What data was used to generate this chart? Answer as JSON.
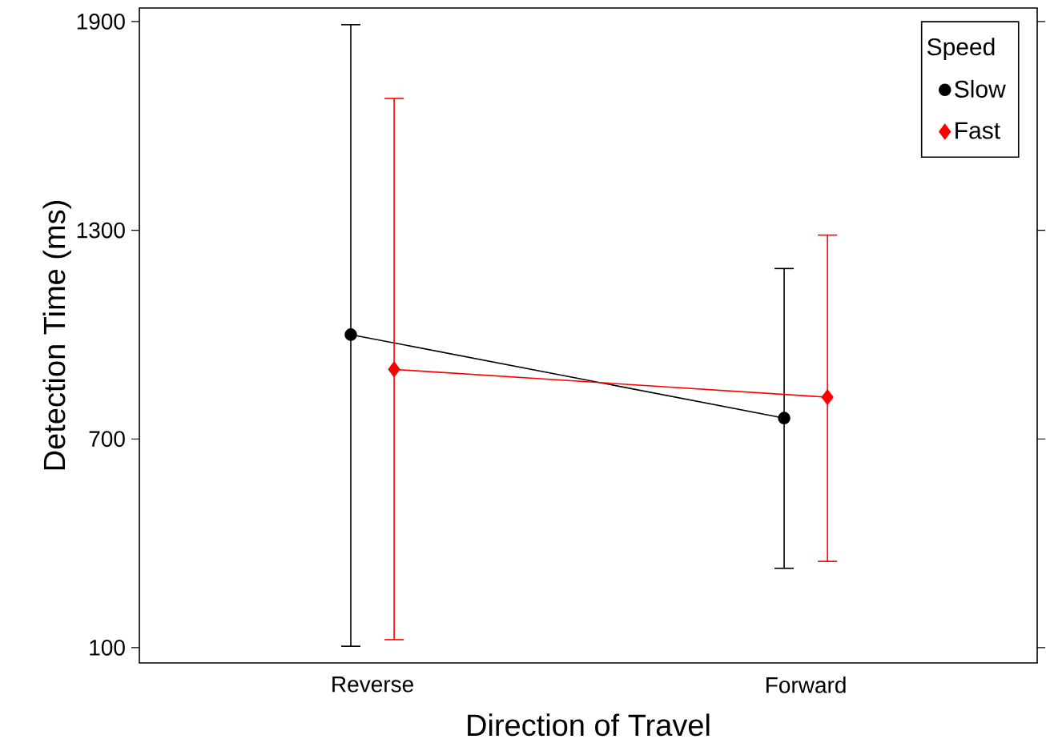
{
  "chart_data": {
    "type": "line",
    "xlabel": "Direction of Travel",
    "ylabel": "Detection Time (ms)",
    "legend_title": "Speed",
    "categories": [
      "Reverse",
      "Forward"
    ],
    "series": [
      {
        "name": "Slow",
        "color": "#000000",
        "marker": "circle",
        "values": [
          1000,
          760
        ],
        "errors": [
          [
            104,
            1891
          ],
          [
            328,
            1190
          ]
        ]
      },
      {
        "name": "Fast",
        "color": "#ff0000",
        "marker": "diamond",
        "values": [
          900,
          820
        ],
        "errors": [
          [
            123,
            1679
          ],
          [
            348,
            1286
          ]
        ]
      }
    ],
    "ylim": [
      56,
      1939
    ],
    "yticks": [
      100,
      700,
      1300,
      1900
    ],
    "grid": false,
    "legend": "top right"
  }
}
